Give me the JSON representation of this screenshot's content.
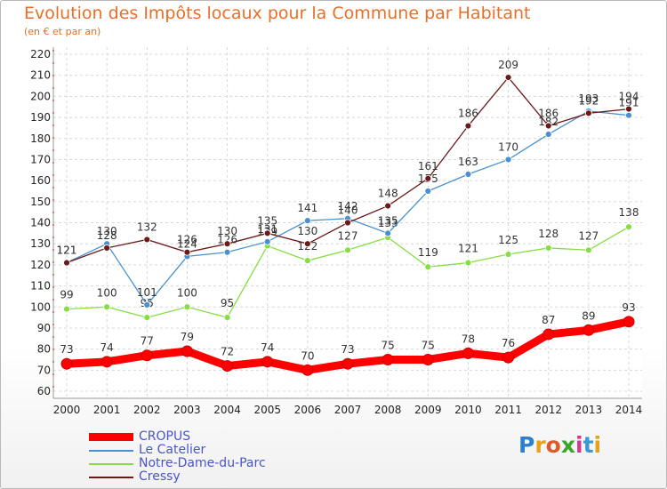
{
  "header": {
    "title": "Evolution des Impôts locaux pour la Commune par Habitant",
    "subtitle": "(en € et par an)"
  },
  "logo": {
    "letters": [
      "P",
      "r",
      "o",
      "x",
      "i",
      "t",
      "i"
    ],
    "colors": [
      "#2b7fd0",
      "#e8a21a",
      "#e05a28",
      "#3aa52a",
      "#d03a8a",
      "#3b9bd0",
      "#e8a21a"
    ]
  },
  "chart_data": {
    "type": "line",
    "title": "Evolution des Impôts locaux pour la Commune par Habitant",
    "subtitle": "(en € et par an)",
    "x": [
      2000,
      2001,
      2002,
      2003,
      2004,
      2005,
      2006,
      2007,
      2008,
      2009,
      2010,
      2011,
      2012,
      2013,
      2014
    ],
    "ylim": [
      60,
      220
    ],
    "yticks": [
      60,
      70,
      80,
      90,
      100,
      110,
      120,
      130,
      140,
      150,
      160,
      170,
      180,
      190,
      200,
      210,
      220
    ],
    "grid": true,
    "legend_position": "bottom-left",
    "series": [
      {
        "name": "CROPUS",
        "color": "#ff0000",
        "values": [
          73,
          74,
          77,
          79,
          72,
          74,
          70,
          73,
          75,
          75,
          78,
          76,
          87,
          89,
          93
        ]
      },
      {
        "name": "Le Catelier",
        "color": "#4a90d0",
        "values": [
          121,
          130,
          101,
          124,
          126,
          131,
          141,
          142,
          135,
          155,
          163,
          170,
          182,
          193,
          191
        ]
      },
      {
        "name": "Notre-Dame-du-Parc",
        "color": "#88dd44",
        "values": [
          99,
          100,
          95,
          100,
          95,
          129,
          122,
          127,
          133,
          119,
          121,
          125,
          128,
          127,
          138
        ]
      },
      {
        "name": "Cressy",
        "color": "#6b1a1a",
        "values": [
          121,
          128,
          132,
          126,
          130,
          135,
          130,
          140,
          148,
          161,
          186,
          209,
          186,
          192,
          194
        ]
      }
    ]
  }
}
